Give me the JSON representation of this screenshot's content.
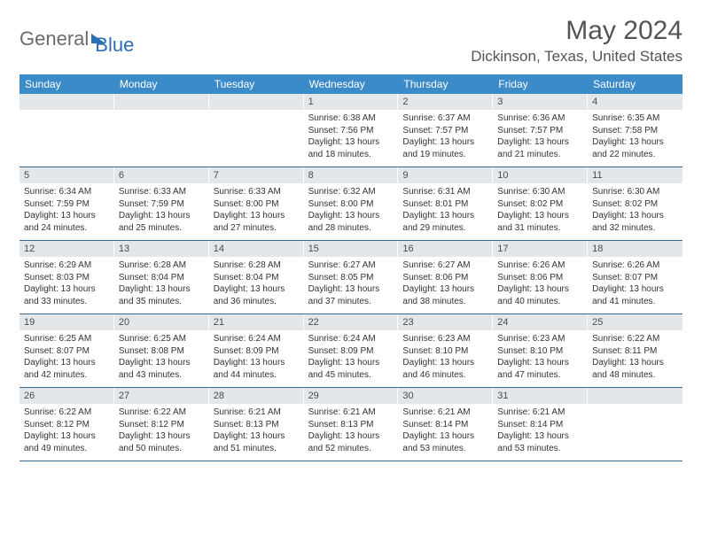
{
  "logo": {
    "part1": "General",
    "part2": "Blue"
  },
  "title": "May 2024",
  "location": "Dickinson, Texas, United States",
  "colors": {
    "header_bg": "#3b8bc9",
    "daynum_bg": "#e4e7ea",
    "week_border": "#3b6a91",
    "logo_gray": "#6b6b6b",
    "logo_blue": "#2b6fb0",
    "text": "#333333",
    "title_color": "#545454"
  },
  "day_names": [
    "Sunday",
    "Monday",
    "Tuesday",
    "Wednesday",
    "Thursday",
    "Friday",
    "Saturday"
  ],
  "weeks": [
    [
      {
        "n": "",
        "sunrise": "",
        "sunset": "",
        "daylight": ""
      },
      {
        "n": "",
        "sunrise": "",
        "sunset": "",
        "daylight": ""
      },
      {
        "n": "",
        "sunrise": "",
        "sunset": "",
        "daylight": ""
      },
      {
        "n": "1",
        "sunrise": "Sunrise: 6:38 AM",
        "sunset": "Sunset: 7:56 PM",
        "daylight": "Daylight: 13 hours and 18 minutes."
      },
      {
        "n": "2",
        "sunrise": "Sunrise: 6:37 AM",
        "sunset": "Sunset: 7:57 PM",
        "daylight": "Daylight: 13 hours and 19 minutes."
      },
      {
        "n": "3",
        "sunrise": "Sunrise: 6:36 AM",
        "sunset": "Sunset: 7:57 PM",
        "daylight": "Daylight: 13 hours and 21 minutes."
      },
      {
        "n": "4",
        "sunrise": "Sunrise: 6:35 AM",
        "sunset": "Sunset: 7:58 PM",
        "daylight": "Daylight: 13 hours and 22 minutes."
      }
    ],
    [
      {
        "n": "5",
        "sunrise": "Sunrise: 6:34 AM",
        "sunset": "Sunset: 7:59 PM",
        "daylight": "Daylight: 13 hours and 24 minutes."
      },
      {
        "n": "6",
        "sunrise": "Sunrise: 6:33 AM",
        "sunset": "Sunset: 7:59 PM",
        "daylight": "Daylight: 13 hours and 25 minutes."
      },
      {
        "n": "7",
        "sunrise": "Sunrise: 6:33 AM",
        "sunset": "Sunset: 8:00 PM",
        "daylight": "Daylight: 13 hours and 27 minutes."
      },
      {
        "n": "8",
        "sunrise": "Sunrise: 6:32 AM",
        "sunset": "Sunset: 8:00 PM",
        "daylight": "Daylight: 13 hours and 28 minutes."
      },
      {
        "n": "9",
        "sunrise": "Sunrise: 6:31 AM",
        "sunset": "Sunset: 8:01 PM",
        "daylight": "Daylight: 13 hours and 29 minutes."
      },
      {
        "n": "10",
        "sunrise": "Sunrise: 6:30 AM",
        "sunset": "Sunset: 8:02 PM",
        "daylight": "Daylight: 13 hours and 31 minutes."
      },
      {
        "n": "11",
        "sunrise": "Sunrise: 6:30 AM",
        "sunset": "Sunset: 8:02 PM",
        "daylight": "Daylight: 13 hours and 32 minutes."
      }
    ],
    [
      {
        "n": "12",
        "sunrise": "Sunrise: 6:29 AM",
        "sunset": "Sunset: 8:03 PM",
        "daylight": "Daylight: 13 hours and 33 minutes."
      },
      {
        "n": "13",
        "sunrise": "Sunrise: 6:28 AM",
        "sunset": "Sunset: 8:04 PM",
        "daylight": "Daylight: 13 hours and 35 minutes."
      },
      {
        "n": "14",
        "sunrise": "Sunrise: 6:28 AM",
        "sunset": "Sunset: 8:04 PM",
        "daylight": "Daylight: 13 hours and 36 minutes."
      },
      {
        "n": "15",
        "sunrise": "Sunrise: 6:27 AM",
        "sunset": "Sunset: 8:05 PM",
        "daylight": "Daylight: 13 hours and 37 minutes."
      },
      {
        "n": "16",
        "sunrise": "Sunrise: 6:27 AM",
        "sunset": "Sunset: 8:06 PM",
        "daylight": "Daylight: 13 hours and 38 minutes."
      },
      {
        "n": "17",
        "sunrise": "Sunrise: 6:26 AM",
        "sunset": "Sunset: 8:06 PM",
        "daylight": "Daylight: 13 hours and 40 minutes."
      },
      {
        "n": "18",
        "sunrise": "Sunrise: 6:26 AM",
        "sunset": "Sunset: 8:07 PM",
        "daylight": "Daylight: 13 hours and 41 minutes."
      }
    ],
    [
      {
        "n": "19",
        "sunrise": "Sunrise: 6:25 AM",
        "sunset": "Sunset: 8:07 PM",
        "daylight": "Daylight: 13 hours and 42 minutes."
      },
      {
        "n": "20",
        "sunrise": "Sunrise: 6:25 AM",
        "sunset": "Sunset: 8:08 PM",
        "daylight": "Daylight: 13 hours and 43 minutes."
      },
      {
        "n": "21",
        "sunrise": "Sunrise: 6:24 AM",
        "sunset": "Sunset: 8:09 PM",
        "daylight": "Daylight: 13 hours and 44 minutes."
      },
      {
        "n": "22",
        "sunrise": "Sunrise: 6:24 AM",
        "sunset": "Sunset: 8:09 PM",
        "daylight": "Daylight: 13 hours and 45 minutes."
      },
      {
        "n": "23",
        "sunrise": "Sunrise: 6:23 AM",
        "sunset": "Sunset: 8:10 PM",
        "daylight": "Daylight: 13 hours and 46 minutes."
      },
      {
        "n": "24",
        "sunrise": "Sunrise: 6:23 AM",
        "sunset": "Sunset: 8:10 PM",
        "daylight": "Daylight: 13 hours and 47 minutes."
      },
      {
        "n": "25",
        "sunrise": "Sunrise: 6:22 AM",
        "sunset": "Sunset: 8:11 PM",
        "daylight": "Daylight: 13 hours and 48 minutes."
      }
    ],
    [
      {
        "n": "26",
        "sunrise": "Sunrise: 6:22 AM",
        "sunset": "Sunset: 8:12 PM",
        "daylight": "Daylight: 13 hours and 49 minutes."
      },
      {
        "n": "27",
        "sunrise": "Sunrise: 6:22 AM",
        "sunset": "Sunset: 8:12 PM",
        "daylight": "Daylight: 13 hours and 50 minutes."
      },
      {
        "n": "28",
        "sunrise": "Sunrise: 6:21 AM",
        "sunset": "Sunset: 8:13 PM",
        "daylight": "Daylight: 13 hours and 51 minutes."
      },
      {
        "n": "29",
        "sunrise": "Sunrise: 6:21 AM",
        "sunset": "Sunset: 8:13 PM",
        "daylight": "Daylight: 13 hours and 52 minutes."
      },
      {
        "n": "30",
        "sunrise": "Sunrise: 6:21 AM",
        "sunset": "Sunset: 8:14 PM",
        "daylight": "Daylight: 13 hours and 53 minutes."
      },
      {
        "n": "31",
        "sunrise": "Sunrise: 6:21 AM",
        "sunset": "Sunset: 8:14 PM",
        "daylight": "Daylight: 13 hours and 53 minutes."
      },
      {
        "n": "",
        "sunrise": "",
        "sunset": "",
        "daylight": ""
      }
    ]
  ]
}
